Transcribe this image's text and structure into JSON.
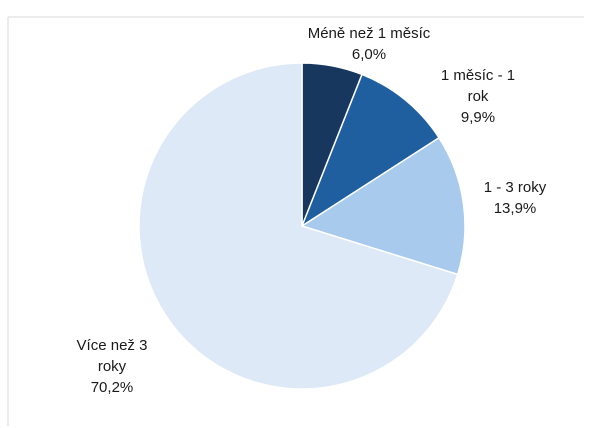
{
  "chart_data": {
    "type": "pie",
    "title": "",
    "slices": [
      {
        "label": "Méně než 1 měsíc",
        "label_lines": [
          "Méně než 1 měsíc"
        ],
        "value": 6.0,
        "value_label": "6,0%",
        "color": "#17375e"
      },
      {
        "label": "1 měsíc - 1 rok",
        "label_lines": [
          "1 měsíc - 1",
          "rok"
        ],
        "value": 9.9,
        "value_label": "9,9%",
        "color": "#1f5fa0"
      },
      {
        "label": "1 - 3 roky",
        "label_lines": [
          "1 - 3 roky"
        ],
        "value": 13.9,
        "value_label": "13,9%",
        "color": "#a8caec"
      },
      {
        "label": "Více než 3 roky",
        "label_lines": [
          "Více než 3",
          "roky"
        ],
        "value": 70.2,
        "value_label": "70,2%",
        "color": "#dde9f6"
      }
    ],
    "start_angle": "12 o'clock",
    "direction": "clockwise",
    "legend": "none (labels beside slices)"
  }
}
